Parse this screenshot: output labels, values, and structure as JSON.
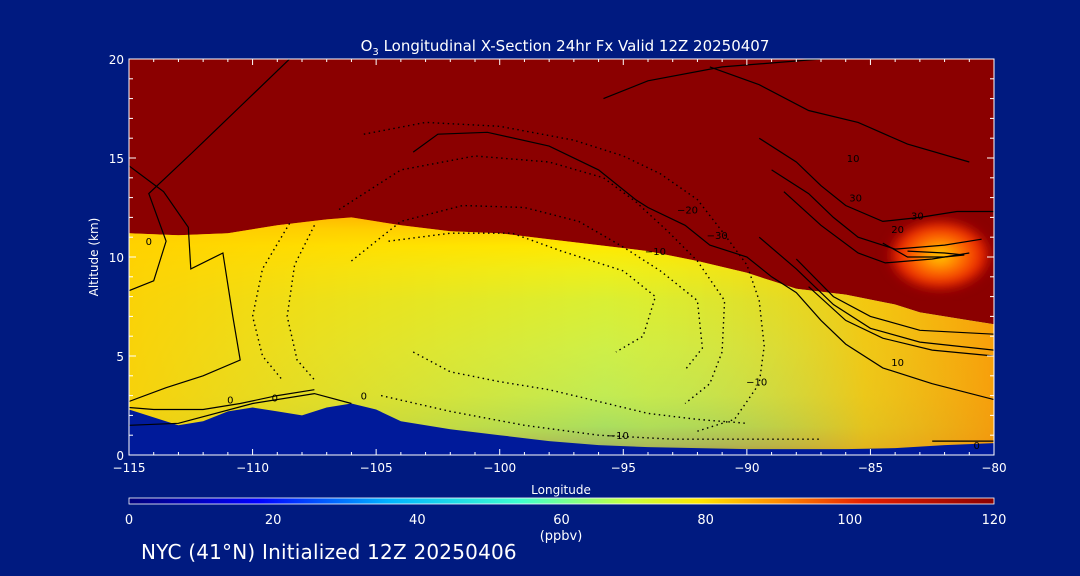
{
  "chart_data": {
    "type": "heatmap",
    "title_prefix": "O",
    "title_subscript": "3",
    "title_rest": " Longitudinal X-Section 24hr  Fx Valid 12Z 20250407",
    "xlabel": "Longitude",
    "ylabel": "Altitude (km)",
    "xlim": [
      -115,
      -80
    ],
    "ylim": [
      0,
      20
    ],
    "x_ticks": [
      -115,
      -110,
      -105,
      -100,
      -95,
      -90,
      -85,
      -80
    ],
    "x_tick_labels": [
      "−115",
      "−110",
      "−105",
      "−100",
      "−95",
      "−90",
      "−85",
      "−80"
    ],
    "y_ticks": [
      0,
      5,
      10,
      15,
      20
    ],
    "y_tick_labels": [
      "0",
      "5",
      "10",
      "15",
      "20"
    ],
    "colorbar": {
      "ticks": [
        0,
        20,
        40,
        60,
        80,
        100,
        120
      ],
      "tick_labels": [
        "0",
        "20",
        "40",
        "60",
        "80",
        "100",
        "120"
      ],
      "unit_label": "(ppbv)",
      "range": [
        0,
        120
      ],
      "colors": [
        "#00007a",
        "#0000ff",
        "#00b4ff",
        "#3cffd0",
        "#c8ff3c",
        "#ffe600",
        "#ff8c00",
        "#e61e00",
        "#8b0000"
      ]
    },
    "terrain_surface_km": [
      [
        -115,
        2.3
      ],
      [
        -114,
        1.9
      ],
      [
        -113,
        1.5
      ],
      [
        -112,
        1.7
      ],
      [
        -111,
        2.2
      ],
      [
        -110,
        2.4
      ],
      [
        -109,
        2.2
      ],
      [
        -108,
        2.0
      ],
      [
        -107,
        2.4
      ],
      [
        -106,
        2.6
      ],
      [
        -105,
        2.3
      ],
      [
        -104,
        1.7
      ],
      [
        -102,
        1.3
      ],
      [
        -100,
        1.0
      ],
      [
        -98,
        0.7
      ],
      [
        -96,
        0.5
      ],
      [
        -94,
        0.4
      ],
      [
        -92,
        0.35
      ],
      [
        -90,
        0.3
      ],
      [
        -88,
        0.3
      ],
      [
        -86,
        0.3
      ],
      [
        -84,
        0.35
      ],
      [
        -82,
        0.5
      ],
      [
        -80,
        0.6
      ]
    ],
    "tropopause_km": [
      [
        -115,
        11.2
      ],
      [
        -113,
        11.1
      ],
      [
        -111,
        11.2
      ],
      [
        -109,
        11.6
      ],
      [
        -107,
        11.9
      ],
      [
        -106,
        12.0
      ],
      [
        -104,
        11.6
      ],
      [
        -102,
        11.3
      ],
      [
        -100,
        11.2
      ],
      [
        -98,
        10.9
      ],
      [
        -96,
        10.6
      ],
      [
        -94,
        10.3
      ],
      [
        -92,
        9.8
      ],
      [
        -90,
        9.2
      ],
      [
        -89,
        8.8
      ],
      [
        -88,
        8.4
      ],
      [
        -86,
        8.1
      ],
      [
        -84,
        7.6
      ],
      [
        -83,
        7.2
      ],
      [
        -82,
        7.0
      ],
      [
        -81,
        6.8
      ],
      [
        -80,
        6.6
      ]
    ],
    "hotspot": {
      "lon": -82.2,
      "alt_km": 10.1,
      "value": 120
    },
    "contour_labels": [
      "0",
      "0",
      "0",
      "0",
      "0",
      "−10",
      "−20",
      "−30",
      "−10",
      "−10",
      "10",
      "20",
      "30",
      "10",
      "30"
    ],
    "grid": false,
    "legend": "none"
  },
  "footer": "NYC (41°N) Initialized 12Z 20250406"
}
